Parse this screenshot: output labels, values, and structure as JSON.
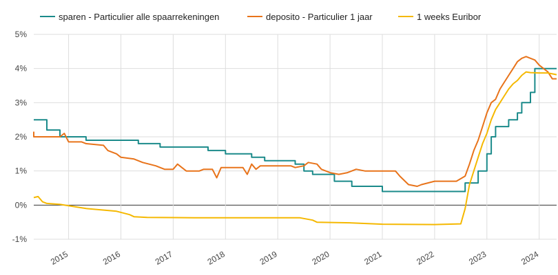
{
  "chart_data": {
    "type": "line",
    "title": "",
    "xlabel": "",
    "ylabel": "",
    "x_range": [
      "2014-05",
      "2024-05"
    ],
    "ylim": [
      -1,
      5
    ],
    "y_ticks": [
      "-1%",
      "0%",
      "1%",
      "2%",
      "3%",
      "4%",
      "5%"
    ],
    "x_ticks": [
      "2015",
      "2016",
      "2017",
      "2018",
      "2019",
      "2020",
      "2021",
      "2022",
      "2023",
      "2024"
    ],
    "grid": true,
    "legend_position": "top",
    "series": [
      {
        "name": "sparen - Particulier alle spaarrekeningen",
        "color": "#1a8a8a",
        "points": [
          [
            "2014-05",
            2.5
          ],
          [
            "2014-08",
            2.5
          ],
          [
            "2014-08",
            2.2
          ],
          [
            "2014-11",
            2.2
          ],
          [
            "2014-11",
            2.0
          ],
          [
            "2015-05",
            2.0
          ],
          [
            "2015-05",
            1.9
          ],
          [
            "2016-05",
            1.9
          ],
          [
            "2016-05",
            1.8
          ],
          [
            "2016-10",
            1.8
          ],
          [
            "2016-10",
            1.7
          ],
          [
            "2017-09",
            1.7
          ],
          [
            "2017-09",
            1.6
          ],
          [
            "2018-01",
            1.6
          ],
          [
            "2018-01",
            1.5
          ],
          [
            "2018-07",
            1.5
          ],
          [
            "2018-07",
            1.4
          ],
          [
            "2018-10",
            1.4
          ],
          [
            "2018-10",
            1.3
          ],
          [
            "2019-05",
            1.3
          ],
          [
            "2019-05",
            1.2
          ],
          [
            "2019-07",
            1.2
          ],
          [
            "2019-07",
            1.0
          ],
          [
            "2019-09",
            1.0
          ],
          [
            "2019-09",
            0.9
          ],
          [
            "2020-02",
            0.9
          ],
          [
            "2020-02",
            0.7
          ],
          [
            "2020-06",
            0.7
          ],
          [
            "2020-06",
            0.55
          ],
          [
            "2021-01",
            0.55
          ],
          [
            "2021-01",
            0.4
          ],
          [
            "2022-08",
            0.4
          ],
          [
            "2022-08",
            0.65
          ],
          [
            "2022-11",
            0.65
          ],
          [
            "2022-11",
            1.0
          ],
          [
            "2023-01",
            1.0
          ],
          [
            "2023-01",
            1.5
          ],
          [
            "2023-02",
            1.5
          ],
          [
            "2023-02",
            2.0
          ],
          [
            "2023-03",
            2.0
          ],
          [
            "2023-03",
            2.3
          ],
          [
            "2023-06",
            2.3
          ],
          [
            "2023-06",
            2.5
          ],
          [
            "2023-08",
            2.5
          ],
          [
            "2023-08",
            2.7
          ],
          [
            "2023-09",
            2.7
          ],
          [
            "2023-09",
            3.0
          ],
          [
            "2023-11",
            3.0
          ],
          [
            "2023-11",
            3.3
          ],
          [
            "2023-12",
            3.3
          ],
          [
            "2023-12",
            4.0
          ],
          [
            "2024-05",
            4.0
          ]
        ]
      },
      {
        "name": "deposito - Particulier 1 jaar",
        "color": "#e8731a",
        "points": [
          [
            "2014-05",
            2.15
          ],
          [
            "2014-05",
            2.0
          ],
          [
            "2014-11",
            2.0
          ],
          [
            "2014-12",
            2.1
          ],
          [
            "2015-01",
            1.85
          ],
          [
            "2015-04",
            1.85
          ],
          [
            "2015-05",
            1.8
          ],
          [
            "2015-09",
            1.75
          ],
          [
            "2015-10",
            1.6
          ],
          [
            "2015-12",
            1.5
          ],
          [
            "2016-01",
            1.4
          ],
          [
            "2016-04",
            1.35
          ],
          [
            "2016-06",
            1.25
          ],
          [
            "2016-09",
            1.15
          ],
          [
            "2016-11",
            1.05
          ],
          [
            "2017-01",
            1.05
          ],
          [
            "2017-02",
            1.2
          ],
          [
            "2017-03",
            1.1
          ],
          [
            "2017-04",
            1.0
          ],
          [
            "2017-07",
            1.0
          ],
          [
            "2017-08",
            1.05
          ],
          [
            "2017-10",
            1.05
          ],
          [
            "2017-11",
            0.8
          ],
          [
            "2017-12",
            1.1
          ],
          [
            "2018-05",
            1.1
          ],
          [
            "2018-06",
            0.9
          ],
          [
            "2018-07",
            1.2
          ],
          [
            "2018-08",
            1.05
          ],
          [
            "2018-09",
            1.15
          ],
          [
            "2019-04",
            1.15
          ],
          [
            "2019-05",
            1.1
          ],
          [
            "2019-07",
            1.15
          ],
          [
            "2019-08",
            1.25
          ],
          [
            "2019-10",
            1.2
          ],
          [
            "2019-11",
            1.05
          ],
          [
            "2020-01",
            0.95
          ],
          [
            "2020-03",
            0.9
          ],
          [
            "2020-05",
            0.95
          ],
          [
            "2020-07",
            1.05
          ],
          [
            "2020-09",
            1.0
          ],
          [
            "2021-04",
            1.0
          ],
          [
            "2021-05",
            0.85
          ],
          [
            "2021-07",
            0.6
          ],
          [
            "2021-09",
            0.55
          ],
          [
            "2021-10",
            0.6
          ],
          [
            "2022-01",
            0.7
          ],
          [
            "2022-06",
            0.7
          ],
          [
            "2022-08",
            0.85
          ],
          [
            "2022-09",
            1.2
          ],
          [
            "2022-10",
            1.6
          ],
          [
            "2022-11",
            1.9
          ],
          [
            "2022-12",
            2.3
          ],
          [
            "2023-01",
            2.7
          ],
          [
            "2023-02",
            3.0
          ],
          [
            "2023-03",
            3.1
          ],
          [
            "2023-04",
            3.4
          ],
          [
            "2023-05",
            3.6
          ],
          [
            "2023-06",
            3.8
          ],
          [
            "2023-07",
            4.0
          ],
          [
            "2023-08",
            4.2
          ],
          [
            "2023-09",
            4.3
          ],
          [
            "2023-10",
            4.35
          ],
          [
            "2023-11",
            4.3
          ],
          [
            "2023-12",
            4.25
          ],
          [
            "2024-01",
            4.1
          ],
          [
            "2024-02",
            4.0
          ],
          [
            "2024-03",
            3.9
          ],
          [
            "2024-04",
            3.7
          ],
          [
            "2024-05",
            3.7
          ]
        ]
      },
      {
        "name": "1 weeks Euribor",
        "color": "#f5b800",
        "points": [
          [
            "2014-05",
            0.22
          ],
          [
            "2014-06",
            0.25
          ],
          [
            "2014-07",
            0.1
          ],
          [
            "2014-08",
            0.05
          ],
          [
            "2014-11",
            0.02
          ],
          [
            "2015-01",
            -0.02
          ],
          [
            "2015-05",
            -0.1
          ],
          [
            "2015-12",
            -0.18
          ],
          [
            "2016-03",
            -0.28
          ],
          [
            "2016-04",
            -0.34
          ],
          [
            "2016-07",
            -0.36
          ],
          [
            "2017-06",
            -0.37
          ],
          [
            "2019-06",
            -0.37
          ],
          [
            "2019-09",
            -0.44
          ],
          [
            "2019-10",
            -0.5
          ],
          [
            "2020-06",
            -0.52
          ],
          [
            "2021-01",
            -0.56
          ],
          [
            "2022-01",
            -0.57
          ],
          [
            "2022-07",
            -0.55
          ],
          [
            "2022-08",
            -0.1
          ],
          [
            "2022-09",
            0.6
          ],
          [
            "2022-10",
            1.0
          ],
          [
            "2022-11",
            1.4
          ],
          [
            "2022-12",
            1.8
          ],
          [
            "2023-01",
            2.1
          ],
          [
            "2023-02",
            2.5
          ],
          [
            "2023-03",
            2.8
          ],
          [
            "2023-04",
            3.0
          ],
          [
            "2023-05",
            3.2
          ],
          [
            "2023-06",
            3.4
          ],
          [
            "2023-07",
            3.55
          ],
          [
            "2023-08",
            3.65
          ],
          [
            "2023-09",
            3.8
          ],
          [
            "2023-10",
            3.9
          ],
          [
            "2023-11",
            3.88
          ],
          [
            "2024-01",
            3.87
          ],
          [
            "2024-03",
            3.87
          ],
          [
            "2024-05",
            3.82
          ]
        ]
      }
    ]
  }
}
